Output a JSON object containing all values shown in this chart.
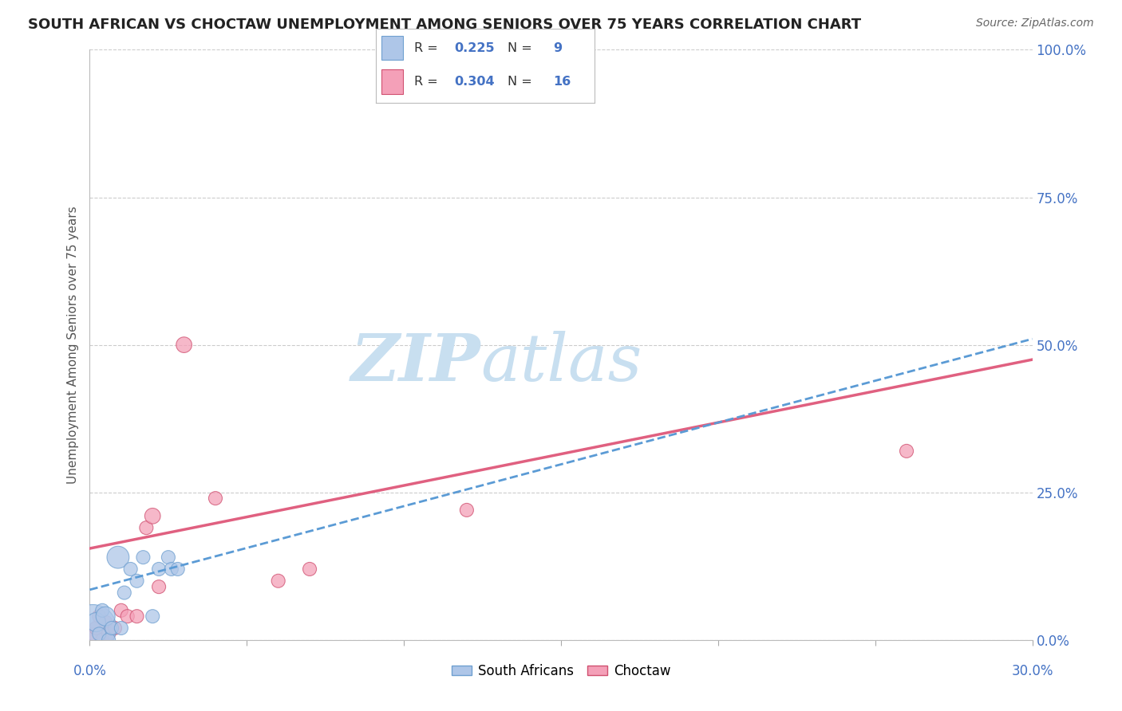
{
  "title": "SOUTH AFRICAN VS CHOCTAW UNEMPLOYMENT AMONG SENIORS OVER 75 YEARS CORRELATION CHART",
  "source": "Source: ZipAtlas.com",
  "ylabel": "Unemployment Among Seniors over 75 years",
  "xlim": [
    0.0,
    0.3
  ],
  "ylim": [
    0.0,
    1.0
  ],
  "yticks": [
    0.0,
    0.25,
    0.5,
    0.75,
    1.0
  ],
  "ytick_labels_right": [
    "0.0%",
    "25.0%",
    "50.0%",
    "75.0%",
    "100.0%"
  ],
  "background_color": "#ffffff",
  "grid_color": "#cccccc",
  "south_african_x": [
    0.001,
    0.002,
    0.003,
    0.004,
    0.005,
    0.006,
    0.007,
    0.009,
    0.01,
    0.011,
    0.013,
    0.015,
    0.017,
    0.02,
    0.022,
    0.025,
    0.026,
    0.028
  ],
  "south_african_y": [
    0.02,
    0.03,
    0.01,
    0.05,
    0.04,
    0.0,
    0.02,
    0.14,
    0.02,
    0.08,
    0.12,
    0.1,
    0.14,
    0.04,
    0.12,
    0.14,
    0.12,
    0.12
  ],
  "south_african_sizes": [
    1800,
    300,
    150,
    150,
    300,
    150,
    150,
    400,
    150,
    150,
    150,
    150,
    150,
    150,
    150,
    150,
    150,
    150
  ],
  "south_african_color": "#aec6e8",
  "south_african_edge": "#6fa0d0",
  "south_african_R": 0.225,
  "south_african_N": 9,
  "choctaw_x": [
    0.001,
    0.002,
    0.003,
    0.004,
    0.005,
    0.006,
    0.008,
    0.01,
    0.012,
    0.015,
    0.018,
    0.02,
    0.022,
    0.03,
    0.04,
    0.06,
    0.07,
    0.12,
    0.26
  ],
  "choctaw_y": [
    0.01,
    0.02,
    0.04,
    0.0,
    0.03,
    0.01,
    0.02,
    0.05,
    0.04,
    0.04,
    0.19,
    0.21,
    0.09,
    0.5,
    0.24,
    0.1,
    0.12,
    0.22,
    0.32
  ],
  "choctaw_sizes": [
    150,
    150,
    150,
    150,
    150,
    150,
    150,
    150,
    150,
    150,
    150,
    200,
    150,
    200,
    150,
    150,
    150,
    150,
    150
  ],
  "choctaw_color": "#f4a0b8",
  "choctaw_edge": "#d05070",
  "choctaw_R": 0.304,
  "choctaw_N": 16,
  "sa_trendline_x0": 0.0,
  "sa_trendline_y0": 0.085,
  "sa_trendline_x1": 0.3,
  "sa_trendline_y1": 0.51,
  "ch_trendline_x0": 0.0,
  "ch_trendline_y0": 0.155,
  "ch_trendline_x1": 0.3,
  "ch_trendline_y1": 0.475,
  "sa_line_color": "#5b9bd5",
  "sa_line_style": "dashed",
  "ch_line_color": "#e06080",
  "ch_line_style": "solid",
  "watermark_zip": "ZIP",
  "watermark_atlas": "atlas",
  "watermark_color_zip": "#c8dff0",
  "watermark_color_atlas": "#c8dff0",
  "title_fontsize": 13,
  "source_fontsize": 10,
  "axis_label_fontsize": 11,
  "tick_right_color": "#4472c4",
  "tick_bottom_color": "#4472c4"
}
